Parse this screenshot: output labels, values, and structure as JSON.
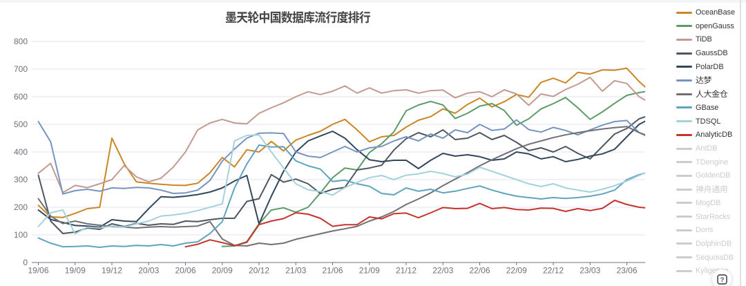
{
  "title": {
    "text": "墨天轮中国数据库流行度排行"
  },
  "chart_data": {
    "type": "line",
    "title": "墨天轮中国数据库流行度排行",
    "x": [
      "19/06",
      "19/07",
      "19/08",
      "19/09",
      "19/10",
      "19/11",
      "19/12",
      "20/01",
      "20/02",
      "20/03",
      "20/04",
      "20/05",
      "20/06",
      "20/07",
      "20/08",
      "20/09",
      "20/10",
      "20/11",
      "20/12",
      "21/01",
      "21/02",
      "21/03",
      "21/04",
      "21/05",
      "21/06",
      "21/07",
      "21/08",
      "21/09",
      "21/10",
      "21/11",
      "21/12",
      "22/01",
      "22/02",
      "22/03",
      "22/04",
      "22/05",
      "22/06",
      "22/07",
      "22/08",
      "22/09",
      "22/10",
      "22/11",
      "22/12",
      "23/01",
      "23/02",
      "23/03",
      "23/04",
      "23/05",
      "23/06",
      "23/07",
      "23/08"
    ],
    "x_tick_labels": [
      "19/06",
      "19/09",
      "19/12",
      "20/03",
      "20/06",
      "20/09",
      "20/12",
      "21/03",
      "21/06",
      "21/09",
      "21/12",
      "22/03",
      "22/06",
      "22/09",
      "22/12",
      "23/03",
      "23/06"
    ],
    "xlabel": "",
    "ylabel": "",
    "ylim": [
      0,
      800
    ],
    "y_ticks": [
      0,
      100,
      200,
      300,
      400,
      500,
      600,
      700,
      800
    ],
    "grid": true,
    "legend_position": "right",
    "series": [
      {
        "name": "OceanBase",
        "color": "#ca8622",
        "values": [
          207,
          165,
          163,
          178,
          195,
          200,
          450,
          357,
          292,
          287,
          283,
          280,
          279,
          287,
          325,
          380,
          346,
          408,
          400,
          438,
          404,
          443,
          460,
          475,
          500,
          518,
          480,
          437,
          455,
          460,
          490,
          515,
          528,
          556,
          540,
          572,
          595,
          563,
          582,
          608,
          598,
          652,
          667,
          650,
          688,
          682,
          697,
          696,
          703,
          655,
          615
        ]
      },
      {
        "name": "openGauss",
        "color": "#5a9b68",
        "values": [
          null,
          null,
          null,
          null,
          null,
          null,
          null,
          null,
          null,
          null,
          null,
          null,
          null,
          null,
          null,
          58,
          60,
          75,
          140,
          190,
          198,
          182,
          200,
          252,
          307,
          342,
          335,
          398,
          430,
          473,
          549,
          570,
          583,
          570,
          521,
          540,
          566,
          575,
          550,
          497,
          520,
          556,
          575,
          597,
          560,
          518,
          545,
          576,
          605,
          615,
          622
        ]
      },
      {
        "name": "TiDB",
        "color": "#c29a90",
        "values": [
          323,
          359,
          253,
          279,
          271,
          285,
          300,
          351,
          310,
          292,
          305,
          345,
          400,
          480,
          505,
          518,
          505,
          502,
          540,
          560,
          578,
          600,
          618,
          608,
          620,
          639,
          613,
          632,
          613,
          622,
          625,
          613,
          622,
          624,
          596,
          613,
          618,
          600,
          625,
          610,
          569,
          610,
          601,
          626,
          645,
          670,
          620,
          658,
          648,
          600,
          575
        ]
      },
      {
        "name": "GaussDB",
        "color": "#4e565e",
        "values": [
          316,
          150,
          105,
          110,
          125,
          120,
          140,
          130,
          142,
          135,
          140,
          138,
          150,
          148,
          155,
          160,
          160,
          221,
          231,
          318,
          291,
          302,
          285,
          250,
          265,
          272,
          335,
          342,
          352,
          407,
          448,
          470,
          455,
          480,
          445,
          450,
          470,
          445,
          460,
          435,
          405,
          415,
          400,
          420,
          395,
          375,
          420,
          465,
          485,
          520,
          535
        ]
      },
      {
        "name": "PolarDB",
        "color": "#32475c",
        "values": [
          190,
          156,
          145,
          134,
          132,
          128,
          155,
          150,
          148,
          195,
          238,
          236,
          240,
          246,
          255,
          270,
          295,
          315,
          140,
          240,
          330,
          400,
          440,
          458,
          475,
          450,
          408,
          372,
          365,
          370,
          370,
          340,
          370,
          395,
          385,
          390,
          383,
          370,
          375,
          400,
          393,
          375,
          383,
          365,
          373,
          385,
          393,
          410,
          455,
          500,
          523
        ]
      },
      {
        "name": "达梦",
        "color": "#7793c1",
        "values": [
          510,
          437,
          248,
          260,
          265,
          258,
          270,
          268,
          272,
          270,
          262,
          250,
          252,
          262,
          297,
          367,
          411,
          450,
          468,
          469,
          467,
          400,
          385,
          380,
          400,
          420,
          400,
          415,
          420,
          440,
          455,
          440,
          465,
          450,
          480,
          470,
          500,
          478,
          483,
          516,
          481,
          472,
          489,
          478,
          462,
          480,
          497,
          510,
          514,
          470,
          455
        ]
      },
      {
        "name": "人大金仓",
        "color": "#6e7074",
        "values": [
          231,
          168,
          141,
          150,
          140,
          135,
          130,
          128,
          125,
          128,
          130,
          128,
          130,
          132,
          148,
          85,
          62,
          60,
          70,
          65,
          70,
          84,
          94,
          104,
          114,
          122,
          131,
          150,
          165,
          185,
          210,
          230,
          252,
          278,
          302,
          325,
          350,
          372,
          392,
          412,
          428,
          440,
          452,
          462,
          470,
          477,
          483,
          488,
          492,
          470,
          450
        ]
      },
      {
        "name": "GBase",
        "color": "#5ea4be",
        "values": [
          89,
          70,
          57,
          58,
          60,
          55,
          60,
          58,
          62,
          60,
          65,
          60,
          70,
          75,
          105,
          148,
          270,
          356,
          425,
          418,
          419,
          368,
          350,
          338,
          293,
          298,
          285,
          276,
          250,
          245,
          270,
          258,
          265,
          252,
          258,
          268,
          277,
          262,
          250,
          240,
          235,
          230,
          235,
          232,
          235,
          240,
          248,
          262,
          300,
          318,
          330
        ]
      },
      {
        "name": "TDSQL",
        "color": "#a3d2dc",
        "values": [
          130,
          180,
          190,
          104,
          128,
          125,
          132,
          128,
          140,
          150,
          168,
          172,
          178,
          188,
          200,
          212,
          440,
          460,
          462,
          400,
          342,
          285,
          263,
          257,
          244,
          271,
          290,
          307,
          315,
          300,
          316,
          321,
          330,
          322,
          310,
          320,
          345,
          330,
          315,
          300,
          285,
          275,
          285,
          270,
          262,
          255,
          265,
          278,
          295,
          315,
          335
        ]
      },
      {
        "name": "AnalyticDB",
        "color": "#c5342c",
        "values": [
          null,
          null,
          null,
          null,
          null,
          null,
          null,
          null,
          null,
          null,
          null,
          null,
          57,
          66,
          82,
          72,
          61,
          73,
          137,
          150,
          159,
          180,
          175,
          160,
          131,
          137,
          137,
          165,
          158,
          177,
          179,
          162,
          180,
          199,
          195,
          196,
          214,
          195,
          199,
          192,
          190,
          197,
          196,
          185,
          195,
          188,
          196,
          225,
          210,
          200,
          196
        ]
      }
    ]
  },
  "legend": {
    "items": [
      {
        "label": "OceanBase",
        "color": "#ca8622",
        "active": true
      },
      {
        "label": "openGauss",
        "color": "#5a9b68",
        "active": true
      },
      {
        "label": "TiDB",
        "color": "#c29a90",
        "active": true
      },
      {
        "label": "GaussDB",
        "color": "#4e565e",
        "active": true
      },
      {
        "label": "PolarDB",
        "color": "#32475c",
        "active": true
      },
      {
        "label": "达梦",
        "color": "#7793c1",
        "active": true
      },
      {
        "label": "人大金仓",
        "color": "#6e7074",
        "active": true
      },
      {
        "label": "GBase",
        "color": "#5ea4be",
        "active": true
      },
      {
        "label": "TDSQL",
        "color": "#a3d2dc",
        "active": true
      },
      {
        "label": "AnalyticDB",
        "color": "#c5342c",
        "active": true
      },
      {
        "label": "AntDB",
        "color": "#cccccc",
        "active": false
      },
      {
        "label": "TDengine",
        "color": "#cccccc",
        "active": false
      },
      {
        "label": "GoldenDB",
        "color": "#cccccc",
        "active": false
      },
      {
        "label": "神舟通用",
        "color": "#cccccc",
        "active": false
      },
      {
        "label": "MogDB",
        "color": "#cccccc",
        "active": false
      },
      {
        "label": "StarRocks",
        "color": "#cccccc",
        "active": false
      },
      {
        "label": "Doris",
        "color": "#cccccc",
        "active": false
      },
      {
        "label": "DolphinDB",
        "color": "#cccccc",
        "active": false
      },
      {
        "label": "SequoiaDB",
        "color": "#cccccc",
        "active": false
      },
      {
        "label": "Kyligence",
        "color": "#cccccc",
        "active": false
      }
    ],
    "inactive_color": "#cccccc"
  },
  "help_button": {
    "icon": "help-icon",
    "label": "?"
  },
  "colors": {
    "background": "#ffffff",
    "grid_line": "#E0E6F1",
    "axis_line": "#6E7079",
    "axis_label": "#6E7079",
    "title_text": "#464646",
    "legend_text": "#333333",
    "legend_text_inactive": "#cccccc",
    "top_strip": "#f3f4f5",
    "right_border": "#e0e0e3"
  }
}
